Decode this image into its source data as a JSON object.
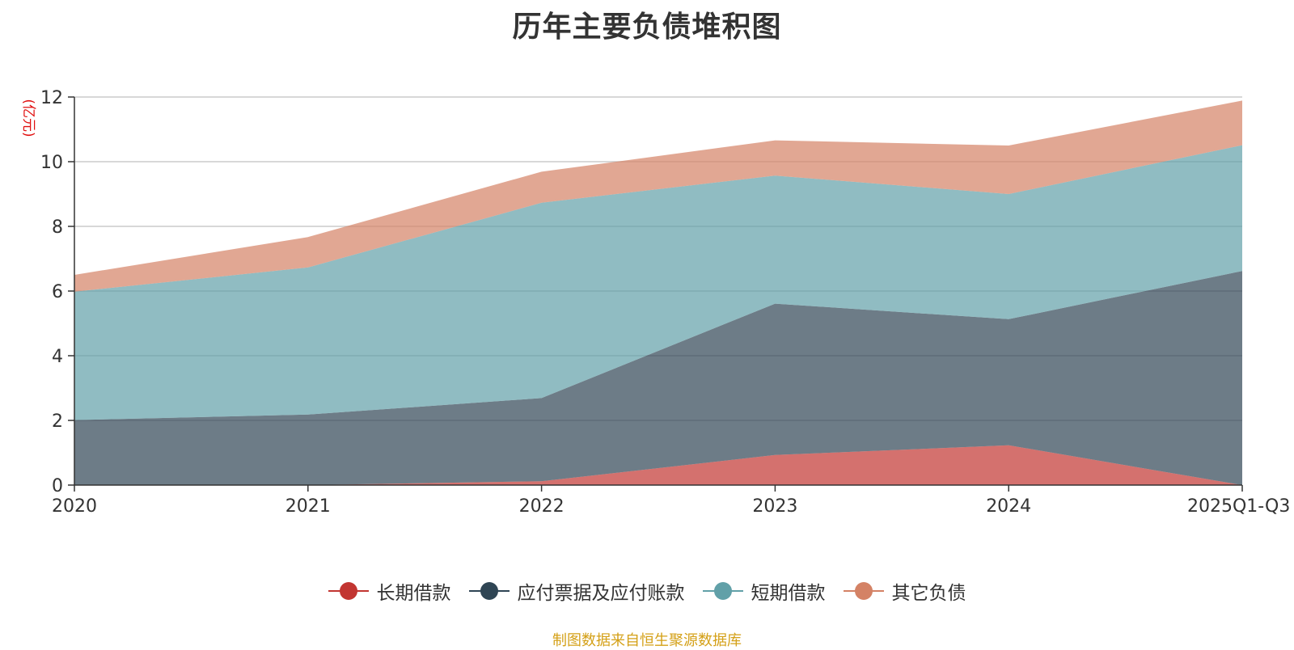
{
  "chart_data": {
    "type": "area",
    "stacked": true,
    "title": "历年主要负债堆积图",
    "ylabel": "(亿元)",
    "xlabel": "",
    "ylim": [
      0,
      12
    ],
    "yticks": [
      0,
      2,
      4,
      6,
      8,
      10,
      12
    ],
    "categories": [
      "2020",
      "2021",
      "2022",
      "2023",
      "2024",
      "2025Q1-Q3"
    ],
    "grid": true,
    "legend_position": "bottom",
    "series": [
      {
        "name": "长期借款",
        "color": "#c23531",
        "values": [
          0,
          0,
          0.12,
          0.93,
          1.23,
          0
        ]
      },
      {
        "name": "应付票据及应付账款",
        "color": "#2f4554",
        "values": [
          2.01,
          2.18,
          2.57,
          4.68,
          3.9,
          6.62
        ]
      },
      {
        "name": "短期借款",
        "color": "#61a0a8",
        "values": [
          3.97,
          4.55,
          6.04,
          3.96,
          3.87,
          3.89
        ]
      },
      {
        "name": "其它负债",
        "color": "#d48265",
        "values": [
          0.52,
          0.94,
          0.96,
          1.09,
          1.5,
          1.38
        ]
      }
    ]
  },
  "footer": "制图数据来自恒生聚源数据库"
}
